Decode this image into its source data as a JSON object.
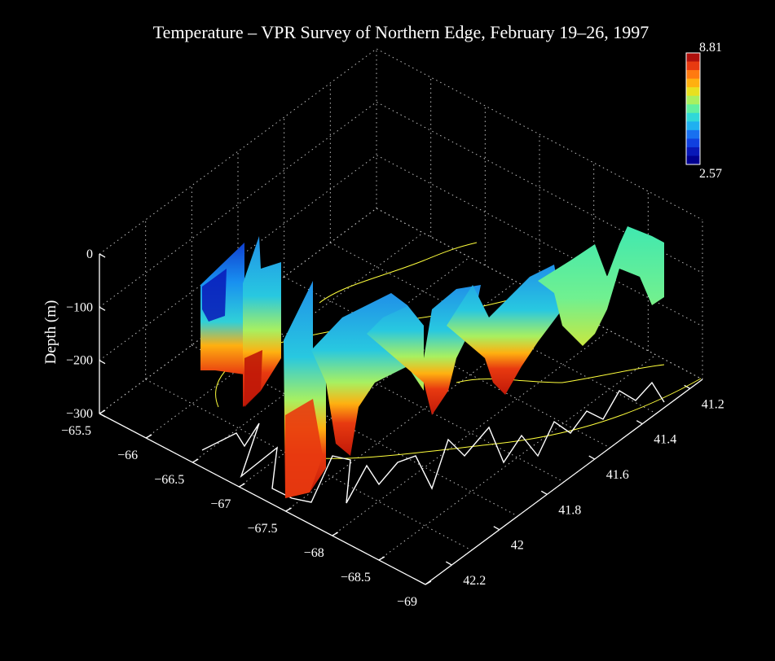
{
  "chart_data": {
    "type": "3d-section",
    "title": "Temperature  – VPR Survey of Northern Edge, February 19–26, 1997",
    "zlabel": "Depth (m)",
    "longitude_ticks": [
      "−65.5",
      "−66",
      "−66.5",
      "−67",
      "−67.5",
      "−68",
      "−68.5",
      "−69"
    ],
    "latitude_ticks": [
      "41.2",
      "41.4",
      "41.6",
      "41.8",
      "42",
      "42.2"
    ],
    "depth_ticks": [
      "0",
      "−100",
      "−200",
      "−300"
    ],
    "longitude_range": [
      -69,
      -65.5
    ],
    "latitude_range": [
      41.2,
      42.3
    ],
    "depth_range": [
      -300,
      0
    ],
    "colorbar": {
      "min_label": "2.57",
      "max_label": "8.81",
      "min": 2.57,
      "max": 8.81,
      "colors": [
        "#b0100c",
        "#e83a10",
        "#ff7a10",
        "#ffb010",
        "#e8e020",
        "#a8f060",
        "#60f0a0",
        "#30d8d8",
        "#20b0f0",
        "#1870f0",
        "#1040e0",
        "#0818b8",
        "#000090"
      ]
    },
    "colors": {
      "background": "#000000",
      "ship_track": "#ffffff",
      "isobath": "#ffff3c",
      "surface_water": "#20b0f0",
      "warm_deep_water": "#e83a10"
    }
  }
}
